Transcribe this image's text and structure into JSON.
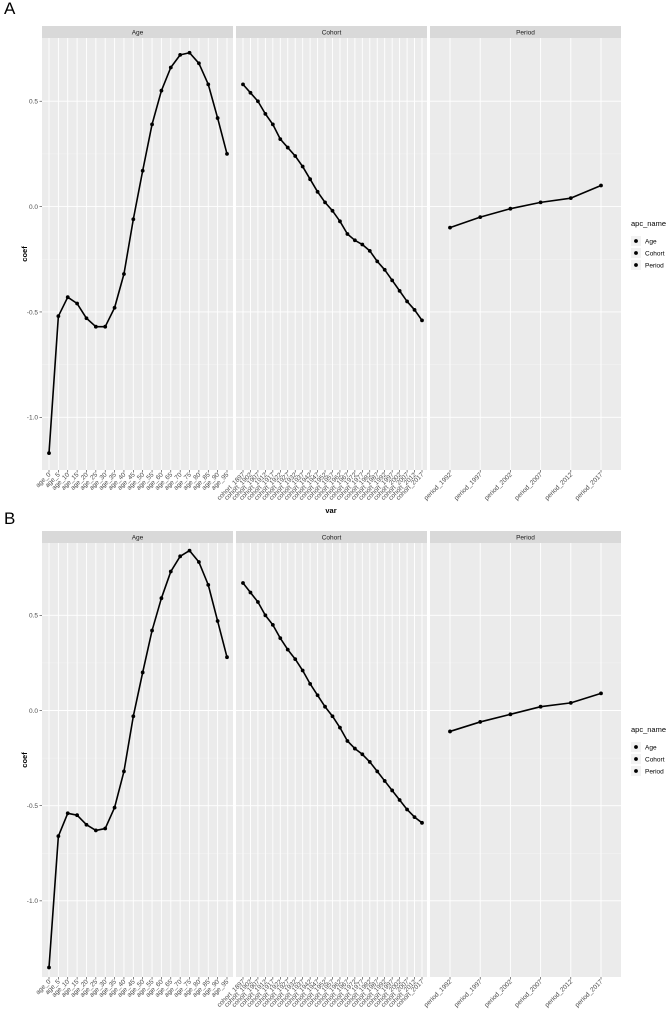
{
  "panels": [
    {
      "letter": "A"
    },
    {
      "letter": "B"
    }
  ],
  "axis": {
    "xlabel": "var",
    "ylabel": "coef",
    "yticks": [
      -1.0,
      -0.5,
      0.0,
      0.5
    ]
  },
  "legend": {
    "title": "apc_name",
    "entries": [
      "Age",
      "Cohort",
      "Period"
    ]
  },
  "facets": [
    {
      "strip": "Age",
      "categories": [
        "age_0",
        "age_5",
        "age_10",
        "age_15",
        "age_20",
        "age_25",
        "age_30",
        "age_35",
        "age_40",
        "age_45",
        "age_50",
        "age_55",
        "age_60",
        "age_65",
        "age_70",
        "age_75",
        "age_80",
        "age_85",
        "age_90",
        "age_95"
      ]
    },
    {
      "strip": "Cohort",
      "categories": [
        "cohort_1897",
        "cohort_1902",
        "cohort_1907",
        "cohort_1912",
        "cohort_1917",
        "cohort_1922",
        "cohort_1927",
        "cohort_1932",
        "cohort_1937",
        "cohort_1942",
        "cohort_1947",
        "cohort_1952",
        "cohort_1957",
        "cohort_1962",
        "cohort_1967",
        "cohort_1972",
        "cohort_1977",
        "cohort_1982",
        "cohort_1987",
        "cohort_1992",
        "cohort_1997",
        "cohort_2002",
        "cohort_2007",
        "cohort_2012",
        "cohort_2017"
      ]
    },
    {
      "strip": "Period",
      "categories": [
        "period_1992",
        "period_1997",
        "period_2002",
        "period_2007",
        "period_2012",
        "period_2017"
      ]
    }
  ],
  "chart_data": [
    {
      "type": "line",
      "panel": "A",
      "xlabel": "var",
      "ylabel": "coef",
      "ylim": [
        -1.25,
        0.8
      ],
      "legend_title": "apc_name",
      "series": [
        {
          "name": "Age",
          "values": [
            -1.17,
            -0.52,
            -0.43,
            -0.46,
            -0.53,
            -0.57,
            -0.57,
            -0.48,
            -0.32,
            -0.06,
            0.17,
            0.39,
            0.55,
            0.66,
            0.72,
            0.73,
            0.68,
            0.58,
            0.42,
            0.25
          ]
        },
        {
          "name": "Cohort",
          "values": [
            0.58,
            0.54,
            0.5,
            0.44,
            0.39,
            0.32,
            0.28,
            0.24,
            0.19,
            0.13,
            0.07,
            0.02,
            -0.02,
            -0.07,
            -0.13,
            -0.16,
            -0.18,
            -0.21,
            -0.26,
            -0.3,
            -0.35,
            -0.4,
            -0.45,
            -0.49,
            -0.54
          ]
        },
        {
          "name": "Period",
          "values": [
            -0.1,
            -0.05,
            -0.01,
            0.02,
            0.04,
            0.1
          ]
        }
      ]
    },
    {
      "type": "line",
      "panel": "B",
      "xlabel": "var",
      "ylabel": "coef",
      "ylim": [
        -1.4,
        0.88
      ],
      "legend_title": "apc_name",
      "series": [
        {
          "name": "Age",
          "values": [
            -1.35,
            -0.66,
            -0.54,
            -0.55,
            -0.6,
            -0.63,
            -0.62,
            -0.51,
            -0.32,
            -0.03,
            0.2,
            0.42,
            0.59,
            0.73,
            0.81,
            0.84,
            0.78,
            0.66,
            0.47,
            0.28
          ]
        },
        {
          "name": "Cohort",
          "values": [
            0.67,
            0.62,
            0.57,
            0.5,
            0.45,
            0.38,
            0.32,
            0.27,
            0.21,
            0.14,
            0.08,
            0.02,
            -0.03,
            -0.09,
            -0.16,
            -0.2,
            -0.23,
            -0.27,
            -0.32,
            -0.37,
            -0.42,
            -0.47,
            -0.52,
            -0.56,
            -0.59
          ]
        },
        {
          "name": "Period",
          "values": [
            -0.11,
            -0.06,
            -0.02,
            0.02,
            0.04,
            0.09
          ]
        }
      ]
    }
  ]
}
